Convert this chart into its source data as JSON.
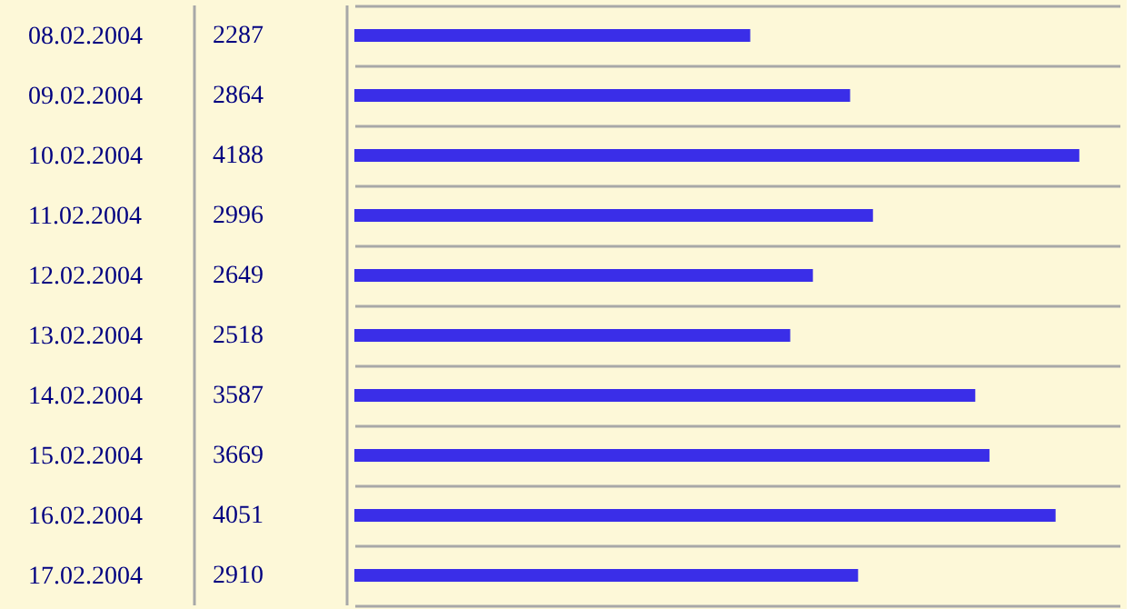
{
  "chart_data": {
    "type": "bar",
    "orientation": "horizontal",
    "categories": [
      "08.02.2004",
      "09.02.2004",
      "10.02.2004",
      "11.02.2004",
      "12.02.2004",
      "13.02.2004",
      "14.02.2004",
      "15.02.2004",
      "16.02.2004",
      "17.02.2004"
    ],
    "values": [
      2287,
      2864,
      4188,
      2996,
      2649,
      2518,
      3587,
      3669,
      4051,
      2910
    ],
    "color": "#3a2ee8",
    "xlim": [
      0,
      4420
    ],
    "data_labels": true,
    "tick_labels": "y",
    "grid": "y"
  }
}
